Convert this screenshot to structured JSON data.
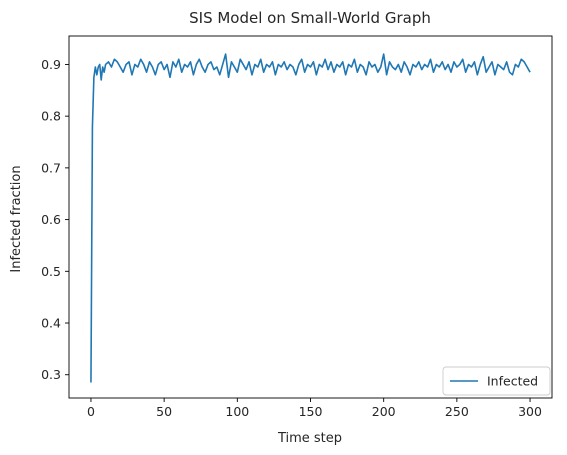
{
  "chart_data": {
    "type": "line",
    "title": "SIS Model on Small-World Graph",
    "xlabel": "Time step",
    "ylabel": "Infected fraction",
    "xlim": [
      -15,
      315
    ],
    "ylim": [
      0.255,
      0.955
    ],
    "xticks": [
      0,
      50,
      100,
      150,
      200,
      250,
      300
    ],
    "yticks": [
      0.3,
      0.4,
      0.5,
      0.6,
      0.7,
      0.8,
      0.9
    ],
    "grid": false,
    "legend_position": "lower-right",
    "series": [
      {
        "name": "Infected",
        "color": "#1f77b4",
        "x": [
          0,
          1,
          2,
          3,
          4,
          5,
          6,
          7,
          8,
          9,
          10,
          12,
          14,
          16,
          18,
          20,
          22,
          24,
          26,
          28,
          30,
          32,
          34,
          36,
          38,
          40,
          42,
          44,
          46,
          48,
          50,
          52,
          54,
          56,
          58,
          60,
          62,
          64,
          66,
          68,
          70,
          72,
          74,
          76,
          78,
          80,
          82,
          84,
          86,
          88,
          90,
          92,
          94,
          96,
          98,
          100,
          102,
          104,
          106,
          108,
          110,
          112,
          114,
          116,
          118,
          120,
          122,
          124,
          126,
          128,
          130,
          132,
          134,
          136,
          138,
          140,
          142,
          144,
          146,
          148,
          150,
          152,
          154,
          156,
          158,
          160,
          162,
          164,
          166,
          168,
          170,
          172,
          174,
          176,
          178,
          180,
          182,
          184,
          186,
          188,
          190,
          192,
          194,
          196,
          198,
          200,
          202,
          204,
          206,
          208,
          210,
          212,
          214,
          216,
          218,
          220,
          222,
          224,
          226,
          228,
          230,
          232,
          234,
          236,
          238,
          240,
          242,
          244,
          246,
          248,
          250,
          252,
          254,
          256,
          258,
          260,
          262,
          264,
          266,
          268,
          270,
          272,
          274,
          276,
          278,
          280,
          282,
          284,
          286,
          288,
          290,
          292,
          294,
          296,
          298,
          300
        ],
        "y": [
          0.285,
          0.78,
          0.875,
          0.895,
          0.88,
          0.895,
          0.9,
          0.87,
          0.895,
          0.885,
          0.9,
          0.905,
          0.895,
          0.91,
          0.905,
          0.895,
          0.885,
          0.9,
          0.905,
          0.88,
          0.9,
          0.895,
          0.91,
          0.9,
          0.885,
          0.905,
          0.895,
          0.88,
          0.9,
          0.905,
          0.89,
          0.9,
          0.875,
          0.905,
          0.895,
          0.91,
          0.885,
          0.9,
          0.895,
          0.905,
          0.88,
          0.9,
          0.91,
          0.895,
          0.885,
          0.9,
          0.905,
          0.89,
          0.895,
          0.88,
          0.9,
          0.92,
          0.875,
          0.905,
          0.895,
          0.885,
          0.91,
          0.9,
          0.89,
          0.905,
          0.88,
          0.9,
          0.895,
          0.91,
          0.885,
          0.9,
          0.895,
          0.905,
          0.88,
          0.9,
          0.895,
          0.905,
          0.89,
          0.9,
          0.895,
          0.88,
          0.9,
          0.91,
          0.885,
          0.9,
          0.895,
          0.905,
          0.88,
          0.9,
          0.895,
          0.91,
          0.89,
          0.905,
          0.885,
          0.9,
          0.895,
          0.905,
          0.88,
          0.9,
          0.895,
          0.91,
          0.885,
          0.9,
          0.895,
          0.88,
          0.905,
          0.895,
          0.9,
          0.885,
          0.895,
          0.92,
          0.88,
          0.905,
          0.895,
          0.89,
          0.9,
          0.885,
          0.905,
          0.895,
          0.88,
          0.9,
          0.895,
          0.905,
          0.89,
          0.9,
          0.895,
          0.91,
          0.885,
          0.9,
          0.895,
          0.905,
          0.89,
          0.9,
          0.885,
          0.905,
          0.895,
          0.9,
          0.91,
          0.885,
          0.9,
          0.895,
          0.905,
          0.88,
          0.9,
          0.915,
          0.885,
          0.895,
          0.905,
          0.88,
          0.9,
          0.895,
          0.89,
          0.905,
          0.885,
          0.88,
          0.9,
          0.895,
          0.91,
          0.905,
          0.895,
          0.885
        ]
      }
    ]
  }
}
